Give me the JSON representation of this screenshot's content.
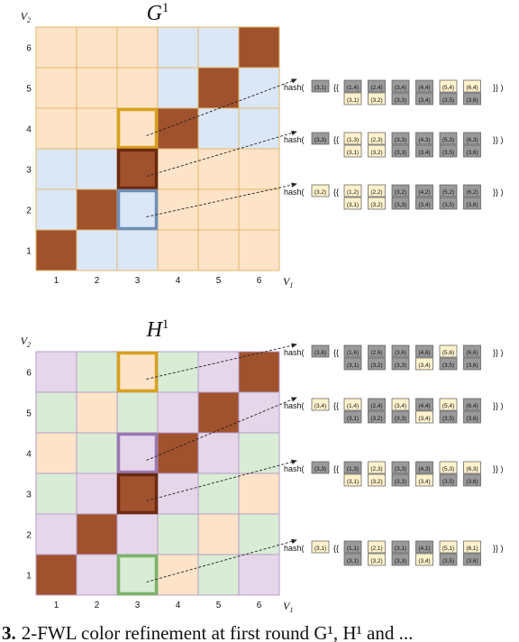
{
  "colors": {
    "orange": "#fde3c8",
    "blue": "#dbe7f7",
    "green": "#d9ecd5",
    "purple": "#e5d6ea",
    "brown": "#a0522d",
    "grid_orange": "#e2b86a",
    "grid_blue": "#8aa9d6",
    "grid_green": "#9cc494",
    "grid_purple": "#b79cc9",
    "hl_gold": "#d7a120",
    "hl_blue": "#6f8fb8",
    "hl_dark": "#6b2a12",
    "hl_purple": "#9a78b2",
    "hl_green": "#7cb36a",
    "tuple_gray": "#9a9a9a",
    "tuple_cream": "#fff2cc"
  },
  "graphs": [
    {
      "title_main": "G",
      "title_sup": "1",
      "y_axis": "V",
      "y_axis_sub": "2",
      "x_axis": "V",
      "x_axis_sub": "1",
      "row_labels": [
        "6",
        "5",
        "4",
        "3",
        "2",
        "1"
      ],
      "col_labels": [
        "1",
        "2",
        "3",
        "4",
        "5",
        "6"
      ],
      "palette": [
        "orange",
        "blue"
      ],
      "grid_rows": [
        [
          0,
          0,
          0,
          1,
          1,
          "X"
        ],
        [
          0,
          0,
          0,
          1,
          "X",
          1
        ],
        [
          0,
          0,
          0,
          "X",
          1,
          1
        ],
        [
          1,
          1,
          "X",
          0,
          0,
          0
        ],
        [
          1,
          "X",
          1,
          0,
          0,
          0
        ],
        [
          "X",
          1,
          1,
          0,
          0,
          0
        ]
      ],
      "highlights": [
        {
          "row": 2,
          "col": 2,
          "color": "hl_gold"
        },
        {
          "row": 3,
          "col": 2,
          "color": "hl_dark"
        },
        {
          "row": 4,
          "col": 2,
          "color": "hl_blue"
        }
      ],
      "hashes": [
        {
          "from": 0,
          "label": "hash(",
          "key": {
            "text": "(3,1)",
            "color": "gray"
          },
          "pairs": [
            [
              {
                "text": "(1,4)",
                "color": "gray"
              },
              {
                "text": "(3,1)",
                "color": "cream"
              }
            ],
            [
              {
                "text": "(2,4)",
                "color": "gray"
              },
              {
                "text": "(3,2)",
                "color": "cream"
              }
            ],
            [
              {
                "text": "(3,4)",
                "color": "gray"
              },
              {
                "text": "(3,3)",
                "color": "gray"
              }
            ],
            [
              {
                "text": "(4,4)",
                "color": "gray"
              },
              {
                "text": "(3,4)",
                "color": "gray"
              }
            ],
            [
              {
                "text": "(5,4)",
                "color": "cream"
              },
              {
                "text": "(3,5)",
                "color": "gray"
              }
            ],
            [
              {
                "text": "(6,4)",
                "color": "cream"
              },
              {
                "text": "(3,6)",
                "color": "gray"
              }
            ]
          ]
        },
        {
          "from": 1,
          "label": "hash(",
          "key": {
            "text": "(3,3)",
            "color": "gray"
          },
          "pairs": [
            [
              {
                "text": "(1,3)",
                "color": "cream"
              },
              {
                "text": "(3,1)",
                "color": "cream"
              }
            ],
            [
              {
                "text": "(2,3)",
                "color": "cream"
              },
              {
                "text": "(3,2)",
                "color": "cream"
              }
            ],
            [
              {
                "text": "(3,3)",
                "color": "gray"
              },
              {
                "text": "(3,3)",
                "color": "gray"
              }
            ],
            [
              {
                "text": "(4,3)",
                "color": "gray"
              },
              {
                "text": "(3,4)",
                "color": "gray"
              }
            ],
            [
              {
                "text": "(5,3)",
                "color": "gray"
              },
              {
                "text": "(3,5)",
                "color": "gray"
              }
            ],
            [
              {
                "text": "(6,3)",
                "color": "gray"
              },
              {
                "text": "(3,6)",
                "color": "gray"
              }
            ]
          ]
        },
        {
          "from": 2,
          "label": "hash(",
          "key": {
            "text": "(3,2)",
            "color": "cream"
          },
          "pairs": [
            [
              {
                "text": "(1,2)",
                "color": "cream"
              },
              {
                "text": "(3,1)",
                "color": "cream"
              }
            ],
            [
              {
                "text": "(2,2)",
                "color": "cream"
              },
              {
                "text": "(3,2)",
                "color": "cream"
              }
            ],
            [
              {
                "text": "(3,2)",
                "color": "gray"
              },
              {
                "text": "(3,3)",
                "color": "gray"
              }
            ],
            [
              {
                "text": "(4,2)",
                "color": "gray"
              },
              {
                "text": "(3,4)",
                "color": "gray"
              }
            ],
            [
              {
                "text": "(5,2)",
                "color": "gray"
              },
              {
                "text": "(3,5)",
                "color": "gray"
              }
            ],
            [
              {
                "text": "(6,2)",
                "color": "gray"
              },
              {
                "text": "(3,6)",
                "color": "gray"
              }
            ]
          ]
        }
      ]
    },
    {
      "title_main": "H",
      "title_sup": "1",
      "y_axis": "V",
      "y_axis_sub": "2",
      "x_axis": "V",
      "x_axis_sub": "1",
      "row_labels": [
        "6",
        "5",
        "4",
        "3",
        "2",
        "1"
      ],
      "col_labels": [
        "1",
        "2",
        "3",
        "4",
        "5",
        "6"
      ],
      "palette": [
        "purple",
        "green",
        "orange"
      ],
      "grid_rows": [
        [
          0,
          1,
          2,
          1,
          0,
          "X"
        ],
        [
          1,
          2,
          1,
          0,
          "X",
          0
        ],
        [
          2,
          1,
          0,
          "X",
          0,
          1
        ],
        [
          1,
          0,
          "X",
          0,
          1,
          2
        ],
        [
          0,
          "X",
          0,
          1,
          2,
          1
        ],
        [
          "X",
          0,
          1,
          2,
          1,
          0
        ]
      ],
      "highlights": [
        {
          "row": 0,
          "col": 2,
          "color": "hl_gold"
        },
        {
          "row": 2,
          "col": 2,
          "color": "hl_purple"
        },
        {
          "row": 3,
          "col": 2,
          "color": "hl_dark"
        },
        {
          "row": 5,
          "col": 2,
          "color": "hl_green"
        }
      ],
      "hashes": [
        {
          "from": 0,
          "label": "hash(",
          "key": {
            "text": "(3,6)",
            "color": "gray"
          },
          "pairs": [
            [
              {
                "text": "(1,6)",
                "color": "gray"
              },
              {
                "text": "(3,1)",
                "color": "gray"
              }
            ],
            [
              {
                "text": "(2,6)",
                "color": "gray"
              },
              {
                "text": "(3,2)",
                "color": "gray"
              }
            ],
            [
              {
                "text": "(3,6)",
                "color": "gray"
              },
              {
                "text": "(3,3)",
                "color": "gray"
              }
            ],
            [
              {
                "text": "(4,6)",
                "color": "gray"
              },
              {
                "text": "(3,4)",
                "color": "cream"
              }
            ],
            [
              {
                "text": "(5,6)",
                "color": "cream"
              },
              {
                "text": "(3,5)",
                "color": "gray"
              }
            ],
            [
              {
                "text": "(6,6)",
                "color": "gray"
              },
              {
                "text": "(3,6)",
                "color": "gray"
              }
            ]
          ]
        },
        {
          "from": 1,
          "label": "hash(",
          "key": {
            "text": "(3,4)",
            "color": "cream"
          },
          "pairs": [
            [
              {
                "text": "(1,4)",
                "color": "cream"
              },
              {
                "text": "(3,1)",
                "color": "gray"
              }
            ],
            [
              {
                "text": "(2,4)",
                "color": "gray"
              },
              {
                "text": "(3,2)",
                "color": "gray"
              }
            ],
            [
              {
                "text": "(3,4)",
                "color": "cream"
              },
              {
                "text": "(3,3)",
                "color": "gray"
              }
            ],
            [
              {
                "text": "(4,4)",
                "color": "gray"
              },
              {
                "text": "(3,4)",
                "color": "cream"
              }
            ],
            [
              {
                "text": "(5,4)",
                "color": "cream"
              },
              {
                "text": "(3,5)",
                "color": "gray"
              }
            ],
            [
              {
                "text": "(6,4)",
                "color": "gray"
              },
              {
                "text": "(3,6)",
                "color": "gray"
              }
            ]
          ]
        },
        {
          "from": 2,
          "label": "hash(",
          "key": {
            "text": "(3,3)",
            "color": "gray"
          },
          "pairs": [
            [
              {
                "text": "(1,3)",
                "color": "gray"
              },
              {
                "text": "(3,1)",
                "color": "cream"
              }
            ],
            [
              {
                "text": "(2,3)",
                "color": "cream"
              },
              {
                "text": "(3,2)",
                "color": "cream"
              }
            ],
            [
              {
                "text": "(3,3)",
                "color": "gray"
              },
              {
                "text": "(3,3)",
                "color": "gray"
              }
            ],
            [
              {
                "text": "(4,3)",
                "color": "gray"
              },
              {
                "text": "(3,4)",
                "color": "cream"
              }
            ],
            [
              {
                "text": "(5,3)",
                "color": "cream"
              },
              {
                "text": "(3,5)",
                "color": "gray"
              }
            ],
            [
              {
                "text": "(6,3)",
                "color": "cream"
              },
              {
                "text": "(3,6)",
                "color": "gray"
              }
            ]
          ]
        },
        {
          "from": 3,
          "label": "hash(",
          "key": {
            "text": "(3,1)",
            "color": "cream"
          },
          "pairs": [
            [
              {
                "text": "(1,1)",
                "color": "gray"
              },
              {
                "text": "(3,1)",
                "color": "gray"
              }
            ],
            [
              {
                "text": "(2,1)",
                "color": "cream"
              },
              {
                "text": "(3,2)",
                "color": "cream"
              }
            ],
            [
              {
                "text": "(3,1)",
                "color": "gray"
              },
              {
                "text": "(3,3)",
                "color": "gray"
              }
            ],
            [
              {
                "text": "(4,1)",
                "color": "gray"
              },
              {
                "text": "(3,4)",
                "color": "cream"
              }
            ],
            [
              {
                "text": "(5,1)",
                "color": "cream"
              },
              {
                "text": "(3,5)",
                "color": "gray"
              }
            ],
            [
              {
                "text": "(6,1)",
                "color": "cream"
              },
              {
                "text": "(3,6)",
                "color": "gray"
              }
            ]
          ]
        }
      ]
    }
  ],
  "caption": {
    "fig_label": "3.",
    "text": "2-FWL color refinement at first round G¹, H¹ and ..."
  }
}
